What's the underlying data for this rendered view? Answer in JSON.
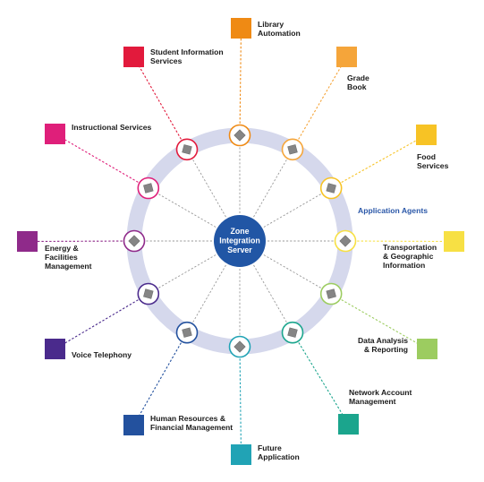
{
  "hub": {
    "lines": [
      "Zone",
      "Integration",
      "Server"
    ],
    "color": "#2156a5"
  },
  "ring_label": "Application Agents",
  "ring_color": "#d5d8ec",
  "services": [
    {
      "id": "library-automation",
      "lines": [
        "Library",
        "Automation"
      ],
      "color": "#ef8a14"
    },
    {
      "id": "grade-book",
      "lines": [
        "Grade",
        "Book"
      ],
      "color": "#f5a53a"
    },
    {
      "id": "food-services",
      "lines": [
        "Food",
        "Services"
      ],
      "color": "#f7c325"
    },
    {
      "id": "transportation",
      "lines": [
        "Transportation",
        "& Geographic",
        "Information"
      ],
      "color": "#f7e044"
    },
    {
      "id": "data-analysis",
      "lines": [
        "Data Analysis",
        "& Reporting"
      ],
      "color": "#9ccc60"
    },
    {
      "id": "network-account",
      "lines": [
        "Network Account",
        "Management"
      ],
      "color": "#1ba58d"
    },
    {
      "id": "future-application",
      "lines": [
        "Future",
        "Application"
      ],
      "color": "#21a3b5"
    },
    {
      "id": "human-resources",
      "lines": [
        "Human Resources &",
        "Financial Management"
      ],
      "color": "#23519e"
    },
    {
      "id": "voice-telephony",
      "lines": [
        "Voice Telephony"
      ],
      "color": "#4a2a8c"
    },
    {
      "id": "energy-facilities",
      "lines": [
        "Energy &",
        "Facilities",
        "Management"
      ],
      "color": "#8f2a8a"
    },
    {
      "id": "instructional-services",
      "lines": [
        "Instructional Services"
      ],
      "color": "#df1f7a"
    },
    {
      "id": "student-information",
      "lines": [
        "Student Information",
        "Services"
      ],
      "color": "#e21a3c"
    }
  ],
  "agent_icon": "diamond-agent-icon"
}
